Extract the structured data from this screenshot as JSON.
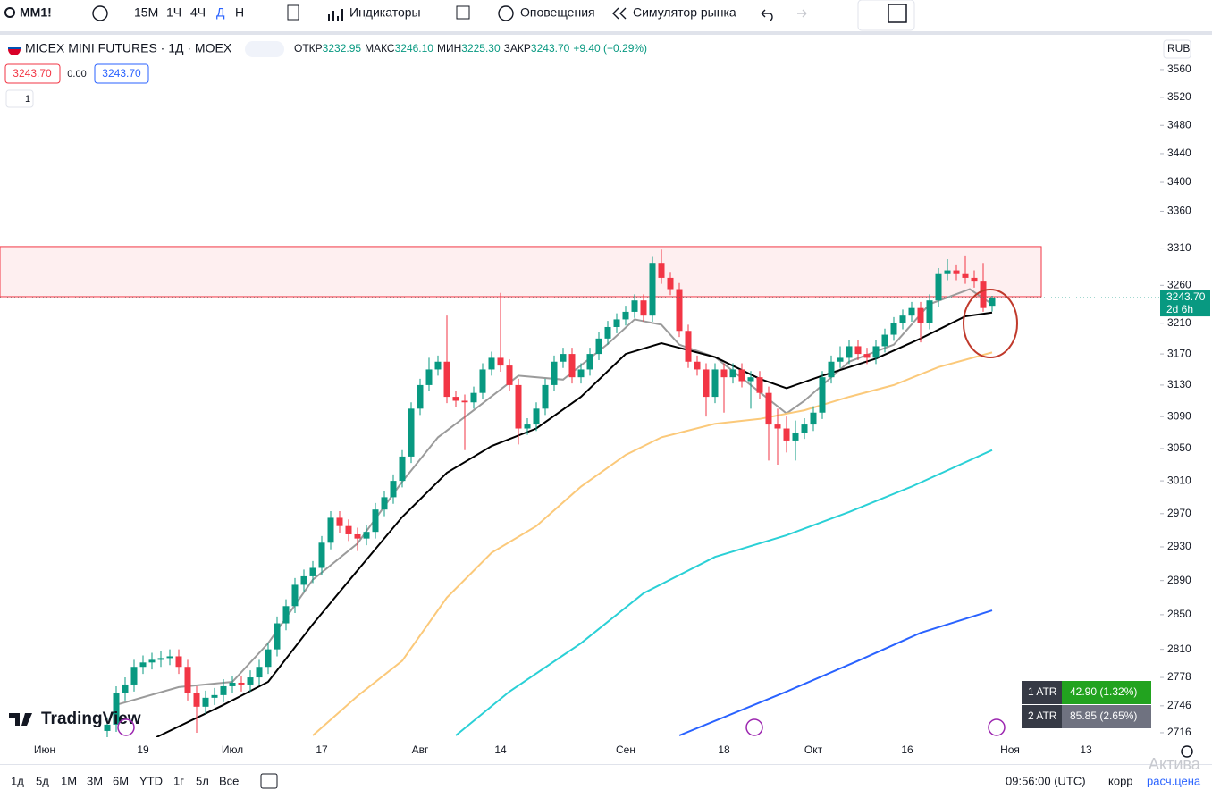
{
  "toolbar": {
    "symbol": "MM1!",
    "intervals": [
      "15М",
      "1Ч",
      "4Ч",
      "Д",
      "Н"
    ],
    "indicators": "Индикаторы",
    "alerts": "Оповещения",
    "replay": "Симулятор рынка"
  },
  "header": {
    "name": "MICEX MINI FUTURES · 1Д · MOEX",
    "open_label": "ОТКР",
    "open": "3232.95",
    "high_label": "МАКС",
    "high": "3246.10",
    "low_label": "МИН",
    "low": "3225.30",
    "close_label": "ЗАКР",
    "close": "3243.70",
    "change": "+9.40 (+0.29%)",
    "sell": "3243.70",
    "spread": "0.00",
    "buy": "3243.70",
    "lots": "1"
  },
  "currency": "RUB",
  "chart_data": {
    "type": "candlestick",
    "log": true,
    "ylim": [
      2711,
      3603
    ],
    "xlim": [
      -12,
      117
    ],
    "yticks": [
      3560,
      3520,
      3480,
      3440,
      3400,
      3360,
      3310,
      3260,
      3210,
      3170,
      3130,
      3090,
      3050,
      3010,
      2970,
      2930,
      2890,
      2850,
      2810,
      2778,
      2746,
      2716
    ],
    "xticks": [
      {
        "value": -7,
        "label": "Июн"
      },
      {
        "value": 4,
        "label": "19"
      },
      {
        "value": 14,
        "label": "Июл"
      },
      {
        "value": 24,
        "label": "17"
      },
      {
        "value": 35,
        "label": "Авг"
      },
      {
        "value": 44,
        "label": "14"
      },
      {
        "value": 58,
        "label": "Сен"
      },
      {
        "value": 69,
        "label": "18"
      },
      {
        "value": 79,
        "label": "Окт"
      },
      {
        "value": 89.5,
        "label": "16"
      },
      {
        "value": 101,
        "label": "Ноя"
      },
      {
        "value": 109.5,
        "label": "13"
      }
    ],
    "up_color": "#089981",
    "down_color": "#f23645",
    "open": [
      2718,
      2725,
      2760,
      2770,
      2790,
      2795,
      2798,
      2800,
      2802,
      2790,
      2760,
      2745,
      2755,
      2758,
      2768,
      2772,
      2770,
      2778,
      2790,
      2810,
      2840,
      2860,
      2885,
      2895,
      2905,
      2935,
      2965,
      2955,
      2945,
      2940,
      2948,
      2975,
      2990,
      3010,
      3040,
      3100,
      3130,
      3150,
      3160,
      3115,
      3110,
      3108,
      3120,
      3150,
      3165,
      3155,
      3130,
      3075,
      3080,
      3100,
      3130,
      3160,
      3170,
      3140,
      3150,
      3170,
      3190,
      3205,
      3215,
      3225,
      3240,
      3220,
      3290,
      3270,
      3255,
      3200,
      3160,
      3150,
      3115,
      3150,
      3140,
      3150,
      3135,
      3140,
      3120,
      3080,
      3075,
      3060,
      3070,
      3080,
      3095,
      3140,
      3160,
      3165,
      3180,
      3170,
      3165,
      3180,
      3195,
      3210,
      3220,
      3230,
      3210,
      3240,
      3275,
      3280,
      3275,
      3270,
      3265,
      3232.95
    ],
    "high": [
      2733,
      2768,
      2778,
      2798,
      2803,
      2806,
      2808,
      2810,
      2810,
      2798,
      2768,
      2763,
      2766,
      2776,
      2780,
      2780,
      2786,
      2798,
      2818,
      2848,
      2868,
      2893,
      2903,
      2913,
      2943,
      2973,
      2973,
      2963,
      2953,
      2956,
      2983,
      2998,
      3018,
      3048,
      3108,
      3138,
      3165,
      3168,
      3220,
      3123,
      3118,
      3128,
      3158,
      3173,
      3250,
      3163,
      3138,
      3088,
      3108,
      3138,
      3168,
      3178,
      3178,
      3158,
      3178,
      3198,
      3213,
      3223,
      3233,
      3248,
      3248,
      3298,
      3308,
      3278,
      3263,
      3208,
      3168,
      3158,
      3158,
      3158,
      3158,
      3158,
      3148,
      3148,
      3128,
      3100,
      3090,
      3085,
      3088,
      3103,
      3148,
      3168,
      3180,
      3188,
      3188,
      3178,
      3188,
      3203,
      3218,
      3228,
      3238,
      3238,
      3248,
      3283,
      3295,
      3288,
      3300,
      3280,
      3290,
      3246.1
    ],
    "low": [
      2710,
      2717,
      2752,
      2762,
      2782,
      2787,
      2790,
      2792,
      2782,
      2752,
      2716,
      2737,
      2747,
      2750,
      2760,
      2762,
      2762,
      2770,
      2782,
      2802,
      2832,
      2852,
      2877,
      2887,
      2897,
      2927,
      2947,
      2937,
      2925,
      2932,
      2940,
      2967,
      2982,
      3002,
      3032,
      3092,
      3122,
      3142,
      3107,
      3102,
      3048,
      3100,
      3112,
      3142,
      3147,
      3122,
      3055,
      3067,
      3072,
      3092,
      3122,
      3152,
      3132,
      3132,
      3142,
      3162,
      3182,
      3197,
      3207,
      3217,
      3212,
      3212,
      3262,
      3247,
      3192,
      3152,
      3142,
      3090,
      3107,
      3095,
      3132,
      3127,
      3100,
      3112,
      3035,
      3030,
      3045,
      3035,
      3062,
      3072,
      3087,
      3132,
      3152,
      3157,
      3162,
      3157,
      3157,
      3172,
      3187,
      3202,
      3212,
      3185,
      3202,
      3232,
      3267,
      3267,
      3262,
      3257,
      3225,
      3225.3
    ],
    "close": [
      2725,
      2760,
      2770,
      2790,
      2795,
      2798,
      2800,
      2802,
      2790,
      2760,
      2745,
      2755,
      2758,
      2768,
      2772,
      2770,
      2778,
      2790,
      2810,
      2840,
      2860,
      2885,
      2895,
      2905,
      2935,
      2965,
      2955,
      2945,
      2940,
      2948,
      2975,
      2990,
      3010,
      3040,
      3100,
      3130,
      3150,
      3160,
      3115,
      3110,
      3108,
      3120,
      3150,
      3165,
      3155,
      3130,
      3075,
      3080,
      3100,
      3130,
      3160,
      3170,
      3140,
      3150,
      3170,
      3190,
      3205,
      3215,
      3225,
      3240,
      3220,
      3290,
      3270,
      3255,
      3200,
      3160,
      3150,
      3115,
      3150,
      3140,
      3150,
      3135,
      3140,
      3120,
      3080,
      3075,
      3060,
      3070,
      3080,
      3095,
      3140,
      3160,
      3165,
      3180,
      3170,
      3165,
      3180,
      3195,
      3210,
      3220,
      3230,
      3210,
      3240,
      3275,
      3280,
      3275,
      3270,
      3265,
      3230,
      3243.7
    ],
    "lines": [
      {
        "color": "#9b9b9b",
        "x": [
          1,
          8,
          14,
          18,
          23,
          28,
          33,
          37,
          41,
          46,
          51,
          56,
          59,
          62,
          64,
          68,
          72,
          76,
          78,
          83,
          88,
          92,
          96.5,
          99
        ],
        "values": [
          2747,
          2767,
          2773,
          2817,
          2891,
          2934,
          3009,
          3064,
          3098,
          3142,
          3137,
          3183,
          3215,
          3208,
          3182,
          3166,
          3130,
          3094,
          3110,
          3160,
          3182,
          3235,
          3255,
          3235
        ]
      },
      {
        "color": "#000000",
        "x": [
          5.5,
          13,
          18,
          23,
          28,
          33,
          38,
          43,
          48,
          53,
          58,
          62,
          68,
          73,
          76,
          80,
          86,
          91,
          96,
          99
        ],
        "values": [
          2711,
          2747,
          2773,
          2839,
          2902,
          2966,
          3020,
          3053,
          3075,
          3115,
          3170,
          3184,
          3166,
          3138,
          3126,
          3142,
          3164,
          3190,
          3219,
          3224
        ]
      },
      {
        "color": "#fbc97a",
        "x": [
          23,
          28,
          33,
          38,
          43,
          48,
          53,
          58,
          62,
          68,
          73,
          78,
          83,
          88,
          93,
          99
        ],
        "values": [
          2713,
          2757,
          2797,
          2870,
          2923,
          2955,
          3003,
          3042,
          3064,
          3081,
          3087,
          3098,
          3115,
          3130,
          3153,
          3172
        ]
      },
      {
        "color": "#2ad0d6",
        "x": [
          39,
          45,
          53,
          60,
          68,
          76,
          83,
          90,
          99
        ],
        "values": [
          2713,
          2762,
          2817,
          2875,
          2918,
          2944,
          2972,
          3003,
          3048
        ]
      },
      {
        "color": "#2962ff",
        "x": [
          64,
          76,
          84,
          91,
          99
        ],
        "values": [
          2713,
          2762,
          2797,
          2829,
          2855
        ]
      }
    ],
    "zone": [
      3245,
      3312
    ],
    "last_price": {
      "value": 3243.7,
      "label": "3243.70",
      "countdown": "2d 6h"
    }
  },
  "atr": [
    {
      "label": "1 ATR",
      "value": "42.90 (1.32%)"
    },
    {
      "label": "2 ATR",
      "value": "85.85 (2.65%)"
    }
  ],
  "logo": "TradingView",
  "bottom": {
    "ranges": [
      "1д",
      "5д",
      "1М",
      "3М",
      "6М",
      "YTD",
      "1г",
      "5л",
      "Все"
    ],
    "time": "09:56:00 (UTC)",
    "adj": "корр",
    "settle": "расч.цена",
    "watermark": "Актива"
  }
}
